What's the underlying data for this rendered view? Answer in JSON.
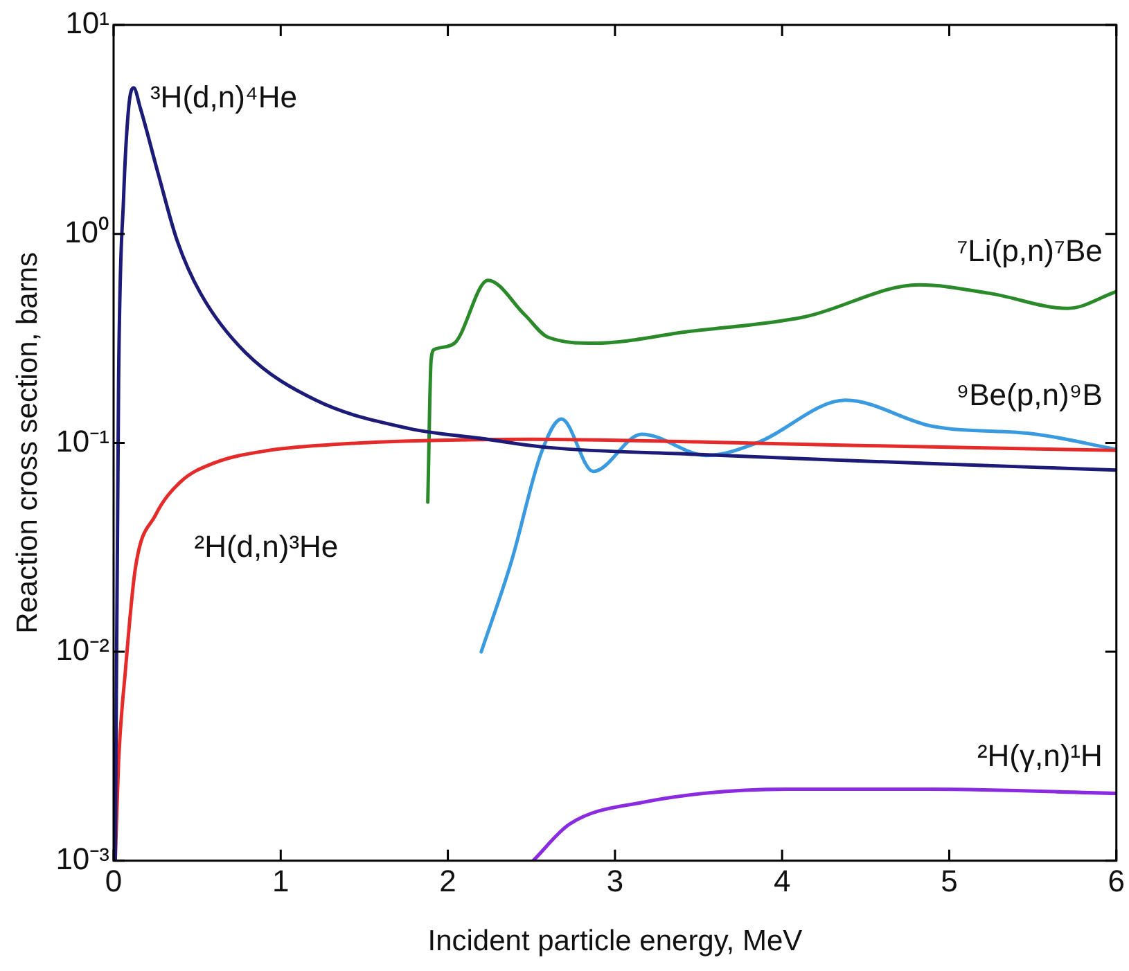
{
  "chart_data": {
    "type": "line",
    "xlabel": "Incident particle energy, MeV",
    "ylabel": "Reaction cross section, barns",
    "log": "y",
    "grid": false,
    "marker": "none",
    "line_style": "solid",
    "legend": false,
    "xlim": [
      0,
      6
    ],
    "xticks": [
      0,
      1,
      2,
      3,
      4,
      5,
      6
    ],
    "ylim": [
      0.001,
      10
    ],
    "yticks": [
      {
        "value": 10,
        "label": "10¹"
      },
      {
        "value": 1,
        "label": "10⁰"
      },
      {
        "value": 0.1,
        "label": "10⁻¹"
      },
      {
        "value": 0.01,
        "label": "10⁻²"
      },
      {
        "value": 0.001,
        "label": "10⁻³"
      }
    ],
    "series": [
      {
        "name": "³H(d,n)⁴He",
        "color": "#1c1c78",
        "x": [
          0.01,
          0.03,
          0.06,
          0.09,
          0.12,
          0.16,
          0.27,
          0.38,
          0.52,
          0.79,
          1.21,
          1.77,
          2.2,
          2.6,
          3.5,
          4.27,
          5.2,
          6
        ],
        "values": [
          0.001,
          0.2,
          1.5,
          4,
          5,
          4,
          1.9,
          0.93,
          0.52,
          0.27,
          0.16,
          0.117,
          0.105,
          0.095,
          0.088,
          0.083,
          0.078,
          0.074
        ]
      },
      {
        "name": "²H(d,n)³He",
        "color": "#e52a2a",
        "x": [
          0.01,
          0.03,
          0.07,
          0.13,
          0.25,
          0.4,
          0.6,
          0.93,
          1.3,
          1.77,
          2.5,
          3.5,
          4.5,
          6
        ],
        "values": [
          0.001,
          0.003,
          0.008,
          0.025,
          0.045,
          0.065,
          0.08,
          0.092,
          0.098,
          0.102,
          0.104,
          0.101,
          0.097,
          0.092
        ]
      },
      {
        "name": "⁷Li(p,n)⁷Be",
        "color": "#2a8a2a",
        "x": [
          1.88,
          1.9,
          1.92,
          2.04,
          2.24,
          2.46,
          2.6,
          2.88,
          3.43,
          4.13,
          4.82,
          5.24,
          5.71,
          6
        ],
        "values": [
          0.052,
          0.25,
          0.28,
          0.3,
          0.6,
          0.41,
          0.32,
          0.3,
          0.34,
          0.4,
          0.57,
          0.52,
          0.44,
          0.53
        ]
      },
      {
        "name": "⁹Be(p,n)⁹B",
        "color": "#3a9ae0",
        "x": [
          2.2,
          2.38,
          2.56,
          2.68,
          2.87,
          3.16,
          3.55,
          3.85,
          4.38,
          4.9,
          5.52,
          6
        ],
        "values": [
          0.01,
          0.027,
          0.09,
          0.13,
          0.073,
          0.11,
          0.087,
          0.1,
          0.16,
          0.12,
          0.11,
          0.093
        ]
      },
      {
        "name": "²H(γ,n)¹H",
        "color": "#8a2be2",
        "x": [
          2.51,
          2.73,
          3.16,
          4.03,
          4.9,
          6
        ],
        "values": [
          0.001,
          0.0015,
          0.0019,
          0.0022,
          0.0022,
          0.0021
        ]
      }
    ]
  }
}
